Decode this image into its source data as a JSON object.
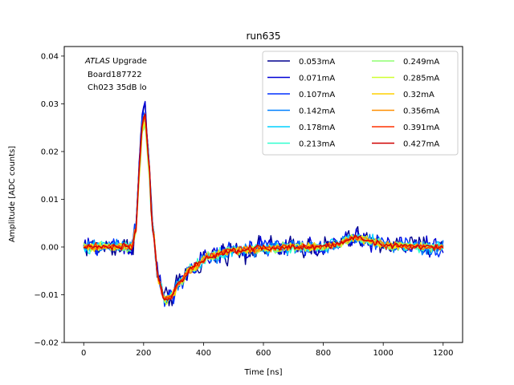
{
  "chart_data": {
    "type": "line",
    "title": "run635",
    "xlabel": "Time [ns]",
    "ylabel": "Amplitude [ADC counts]",
    "xlim": [
      -65,
      1265
    ],
    "ylim": [
      -0.02,
      0.042
    ],
    "xticks": [
      0,
      200,
      400,
      600,
      800,
      1000,
      1200
    ],
    "xtick_labels": [
      "0",
      "200",
      "400",
      "600",
      "800",
      "1000",
      "1200"
    ],
    "yticks": [
      -0.02,
      -0.01,
      0.0,
      0.01,
      0.02,
      0.03,
      0.04
    ],
    "ytick_labels": [
      "−0.02",
      "−0.01",
      "0.00",
      "0.01",
      "0.02",
      "0.03",
      "0.04"
    ],
    "grid": false,
    "legend_location": "top-right",
    "legend_columns": 2,
    "annotation": {
      "atlas": "ATLAS",
      "upgrade": " Upgrade",
      "board": "Board187722",
      "channel": "Ch023 35dB lo"
    },
    "x_range_samples": [
      0,
      1200
    ],
    "sample_step": 5,
    "pulse_shape_points": [
      [
        0,
        0.0
      ],
      [
        160,
        0.0
      ],
      [
        175,
        0.004
      ],
      [
        185,
        0.016
      ],
      [
        195,
        0.026
      ],
      [
        205,
        0.028
      ],
      [
        215,
        0.02
      ],
      [
        230,
        0.004
      ],
      [
        250,
        -0.007
      ],
      [
        270,
        -0.011
      ],
      [
        290,
        -0.0105
      ],
      [
        320,
        -0.0075
      ],
      [
        360,
        -0.0045
      ],
      [
        420,
        -0.002
      ],
      [
        500,
        -0.0008
      ],
      [
        600,
        -0.0003
      ],
      [
        700,
        0.0
      ],
      [
        800,
        0.0
      ],
      [
        850,
        0.0005
      ],
      [
        880,
        0.0015
      ],
      [
        910,
        0.002
      ],
      [
        940,
        0.0015
      ],
      [
        980,
        0.0007
      ],
      [
        1050,
        0.0002
      ],
      [
        1200,
        0.0
      ]
    ],
    "series": [
      {
        "name": "0.053mA",
        "color": "#00008f",
        "noise": 0.0016,
        "peak_scale": 1.05
      },
      {
        "name": "0.071mA",
        "color": "#0000d6",
        "noise": 0.0014,
        "peak_scale": 1.07
      },
      {
        "name": "0.107mA",
        "color": "#0030ff",
        "noise": 0.0012,
        "peak_scale": 1.03
      },
      {
        "name": "0.142mA",
        "color": "#0080ff",
        "noise": 0.001,
        "peak_scale": 1.0
      },
      {
        "name": "0.178mA",
        "color": "#00d0ff",
        "noise": 0.0009,
        "peak_scale": 0.96
      },
      {
        "name": "0.213mA",
        "color": "#30ffcf",
        "noise": 0.0008,
        "peak_scale": 0.92
      },
      {
        "name": "0.249mA",
        "color": "#8fff70",
        "noise": 0.0007,
        "peak_scale": 0.9
      },
      {
        "name": "0.285mA",
        "color": "#cfff30",
        "noise": 0.0006,
        "peak_scale": 0.92
      },
      {
        "name": "0.32mA",
        "color": "#ffd000",
        "noise": 0.0006,
        "peak_scale": 0.95
      },
      {
        "name": "0.356mA",
        "color": "#ff8f00",
        "noise": 0.0005,
        "peak_scale": 0.97
      },
      {
        "name": "0.391mA",
        "color": "#ff3000",
        "noise": 0.0005,
        "peak_scale": 0.98
      },
      {
        "name": "0.427mA",
        "color": "#cf0000",
        "noise": 0.0005,
        "peak_scale": 1.0
      }
    ]
  }
}
